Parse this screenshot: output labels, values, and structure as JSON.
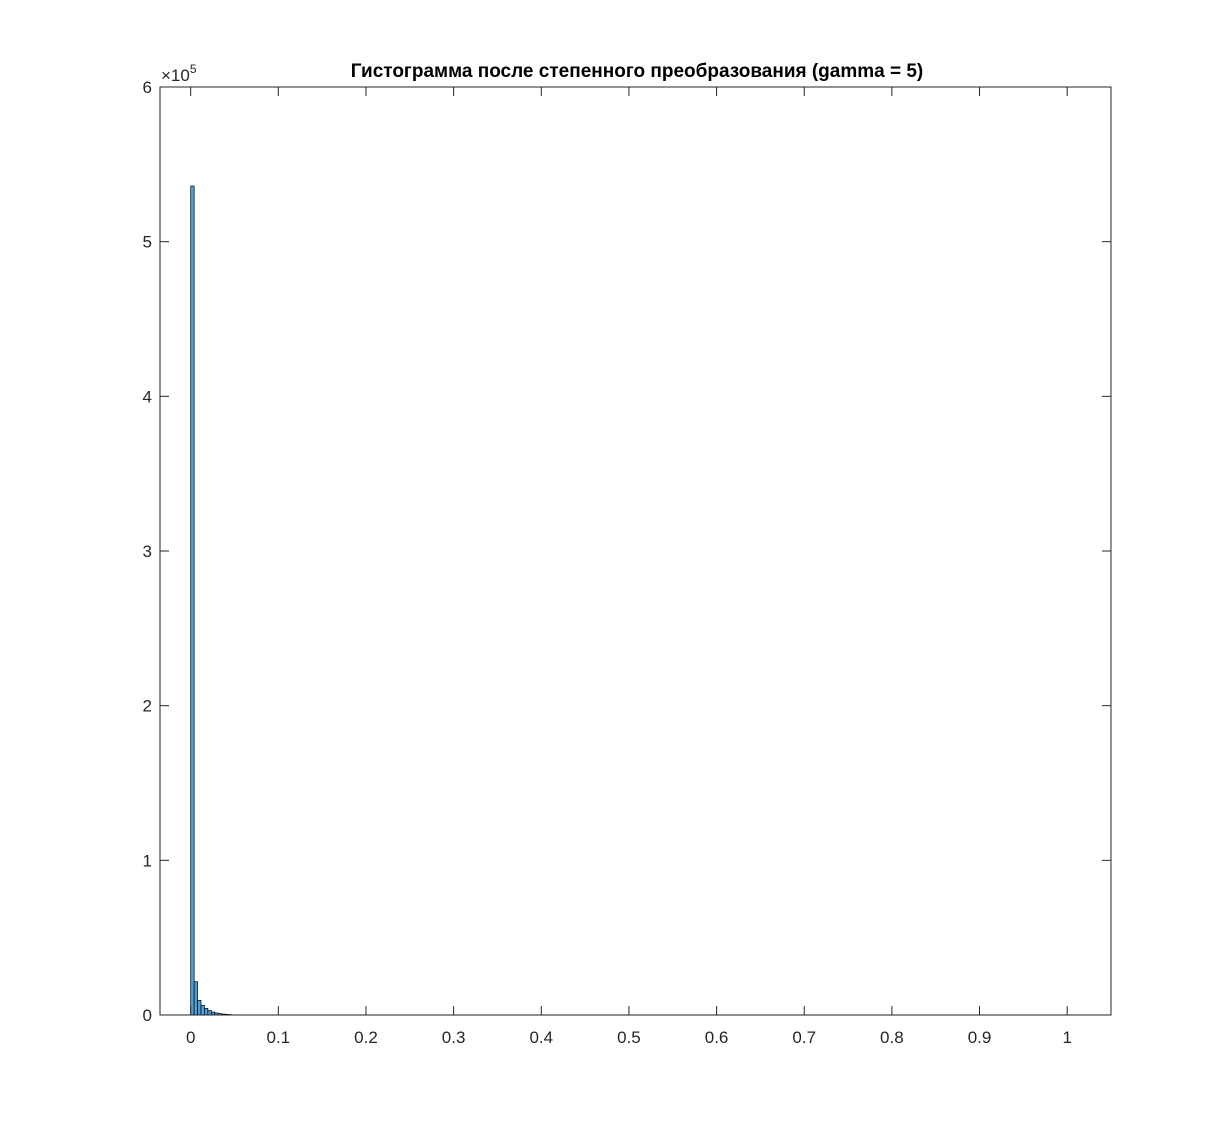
{
  "chart_data": {
    "type": "bar",
    "title": "Гистограмма после степенного преобразования (gamma = 5)",
    "xlabel": "",
    "ylabel": "",
    "xlim": [
      -0.035,
      1.05
    ],
    "ylim": [
      0,
      600000
    ],
    "x_ticks": [
      0,
      0.1,
      0.2,
      0.3,
      0.4,
      0.5,
      0.6,
      0.7,
      0.8,
      0.9,
      1
    ],
    "x_tick_labels": [
      "0",
      "0.1",
      "0.2",
      "0.3",
      "0.4",
      "0.5",
      "0.6",
      "0.7",
      "0.8",
      "0.9",
      "1"
    ],
    "y_ticks": [
      0,
      100000,
      200000,
      300000,
      400000,
      500000,
      600000
    ],
    "y_tick_labels": [
      "0",
      "1",
      "2",
      "3",
      "4",
      "5",
      "6"
    ],
    "y_multiplier_base": "×10",
    "y_multiplier_exp": "5",
    "bin_width": 0.003922,
    "bin_centers": [
      0.002,
      0.0059,
      0.0098,
      0.0137,
      0.0176,
      0.0216,
      0.0255,
      0.0294,
      0.0333,
      0.0373,
      0.0412,
      0.0451
    ],
    "values": [
      536000,
      21500,
      9500,
      6200,
      4300,
      2900,
      1900,
      1300,
      900,
      600,
      400,
      250
    ],
    "tail_value_approx": 150,
    "bar_color": "#4d9fd9",
    "bar_edge_color": "#000000",
    "grid": false,
    "box": true
  }
}
